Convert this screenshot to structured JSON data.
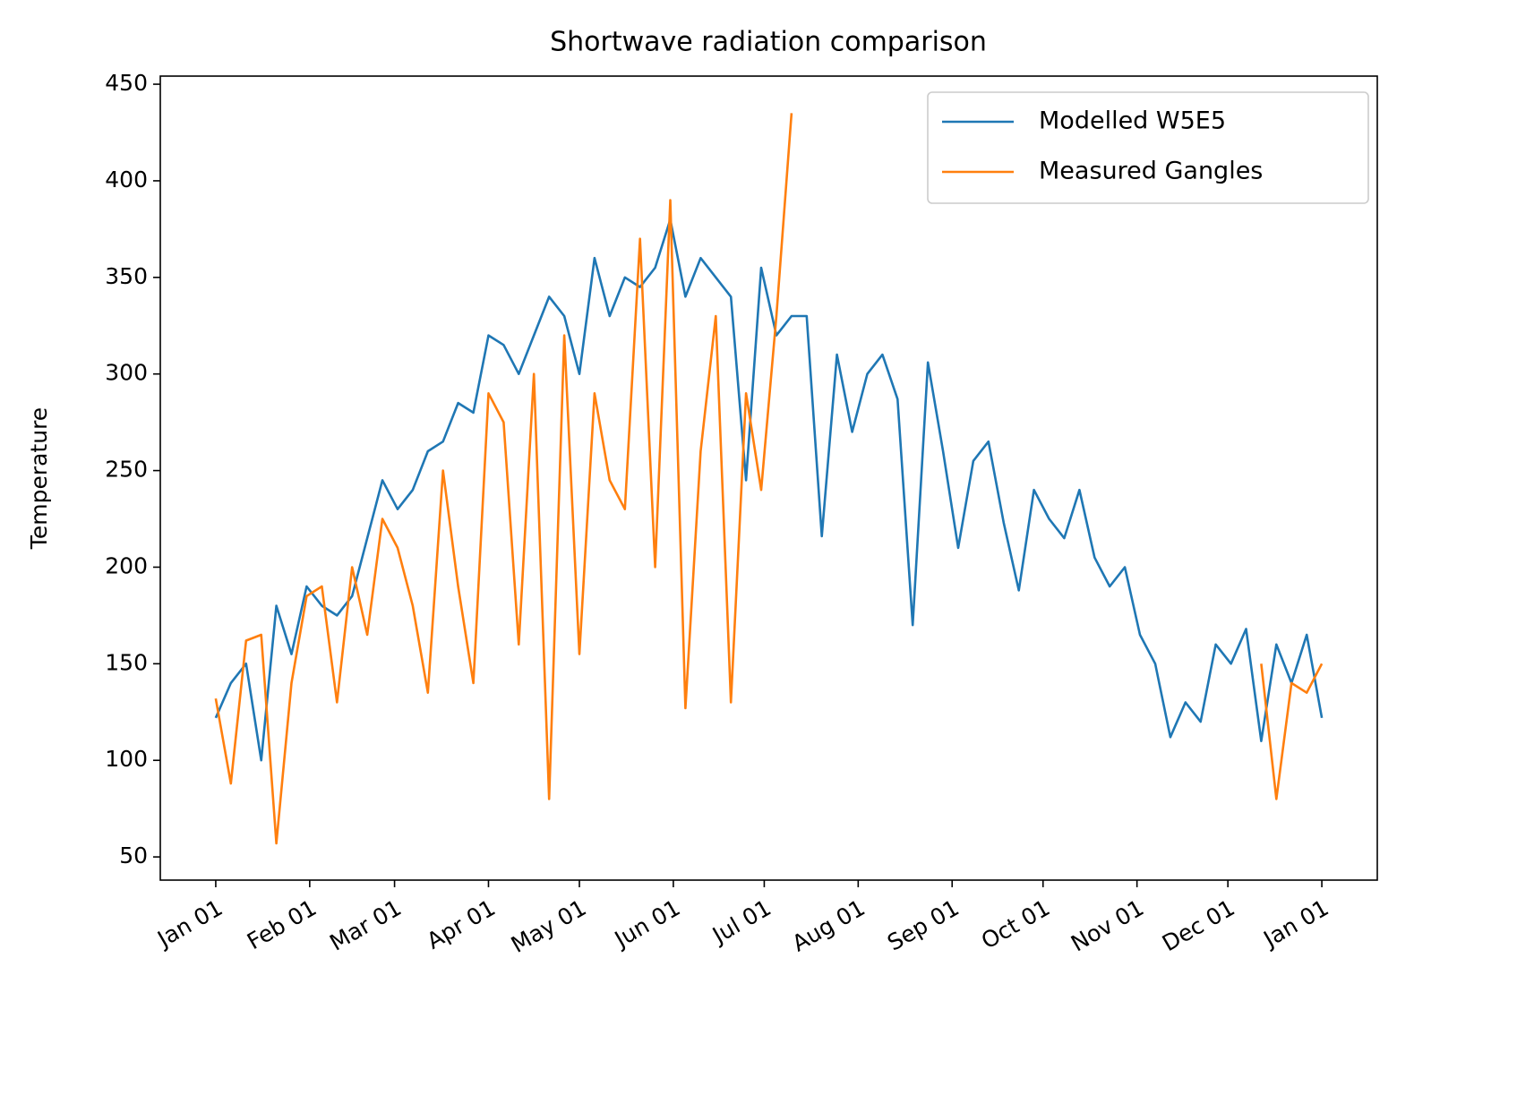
{
  "chart_data": {
    "type": "line",
    "title": "Shortwave radiation comparison",
    "y_label": "Temperature",
    "x": [
      0,
      5,
      10,
      15,
      20,
      25,
      30,
      35,
      40,
      45,
      50,
      55,
      60,
      65,
      70,
      75,
      80,
      85,
      90,
      95,
      100,
      105,
      110,
      115,
      120,
      125,
      130,
      135,
      140,
      145,
      150,
      155,
      160,
      165,
      170,
      175,
      180,
      185,
      190,
      195,
      200,
      205,
      210,
      215,
      220,
      225,
      230,
      235,
      240,
      245,
      250,
      255,
      260,
      265,
      270,
      275,
      280,
      285,
      290,
      295,
      300,
      305,
      310,
      315,
      320,
      325,
      330,
      335,
      340,
      345,
      350,
      355,
      360,
      365
    ],
    "series": [
      {
        "name": "Modelled W5E5",
        "color": "#1f77b4",
        "values": [
          122,
          140,
          150,
          100,
          180,
          155,
          190,
          180,
          175,
          185,
          215,
          245,
          230,
          240,
          260,
          265,
          285,
          280,
          320,
          315,
          300,
          320,
          340,
          330,
          300,
          360,
          330,
          350,
          345,
          355,
          380,
          340,
          360,
          350,
          340,
          245,
          355,
          320,
          330,
          330,
          216,
          310,
          270,
          300,
          310,
          287,
          170,
          306,
          260,
          210,
          255,
          265,
          223,
          188,
          240,
          225,
          215,
          240,
          205,
          190,
          200,
          165,
          150,
          112,
          130,
          120,
          160,
          150,
          168,
          110,
          160,
          140,
          165,
          122
        ]
      },
      {
        "name": "Measured Gangles",
        "color": "#ff7f0e",
        "values": [
          132,
          88,
          162,
          165,
          57,
          140,
          185,
          190,
          130,
          200,
          165,
          225,
          210,
          180,
          135,
          250,
          190,
          140,
          290,
          275,
          160,
          300,
          80,
          320,
          155,
          290,
          245,
          230,
          370,
          200,
          390,
          127,
          260,
          330,
          130,
          290,
          240,
          330,
          435,
          null,
          null,
          null,
          null,
          null,
          null,
          null,
          null,
          null,
          null,
          null,
          null,
          null,
          null,
          null,
          null,
          null,
          null,
          null,
          null,
          null,
          null,
          null,
          null,
          null,
          null,
          null,
          null,
          null,
          null,
          150,
          80,
          140,
          135,
          150
        ]
      }
    ],
    "xlim": [
      -18.3,
      383.3
    ],
    "xticks": [
      {
        "value": 0,
        "label": "Jan 01"
      },
      {
        "value": 31,
        "label": "Feb 01"
      },
      {
        "value": 59,
        "label": "Mar 01"
      },
      {
        "value": 90,
        "label": "Apr 01"
      },
      {
        "value": 120,
        "label": "May 01"
      },
      {
        "value": 151,
        "label": "Jun 01"
      },
      {
        "value": 181,
        "label": "Jul 01"
      },
      {
        "value": 212,
        "label": "Aug 01"
      },
      {
        "value": 243,
        "label": "Sep 01"
      },
      {
        "value": 273,
        "label": "Oct 01"
      },
      {
        "value": 304,
        "label": "Nov 01"
      },
      {
        "value": 334,
        "label": "Dec 01"
      },
      {
        "value": 365,
        "label": "Jan 01"
      }
    ],
    "ylim": [
      38,
      454.2
    ],
    "yticks": [
      50,
      100,
      150,
      200,
      250,
      300,
      350,
      400,
      450
    ],
    "legend": "upper right"
  }
}
